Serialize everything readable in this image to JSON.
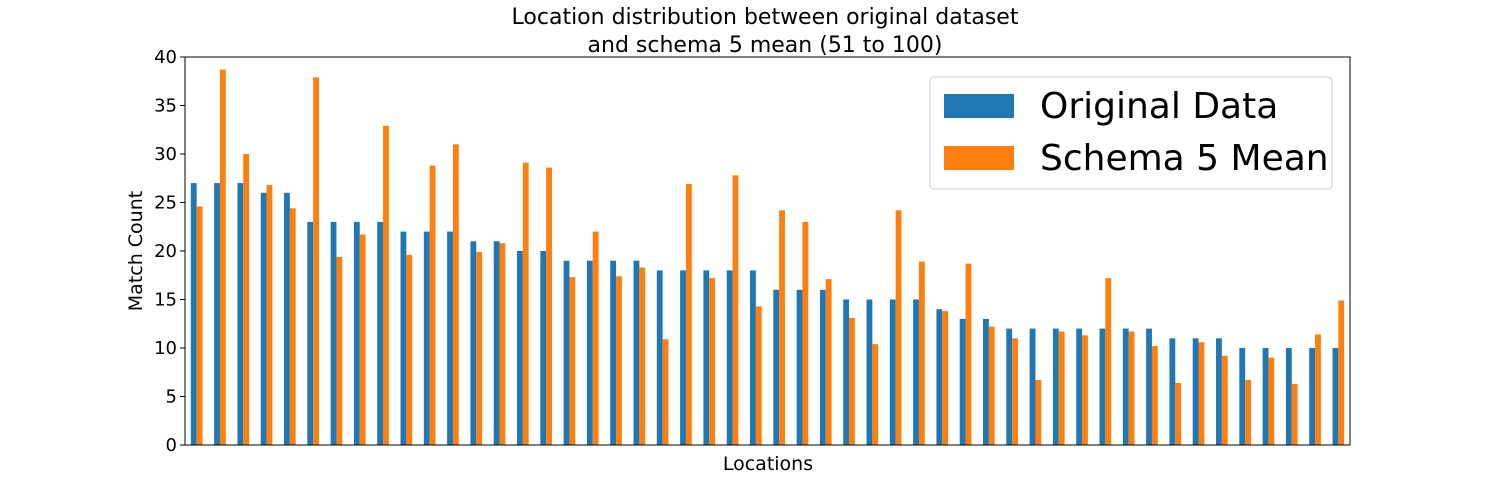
{
  "chart_data": {
    "type": "bar",
    "title_line1": "Location distribution between original dataset",
    "title_line2": "and schema 5 mean (51 to 100)",
    "xlabel": "Locations",
    "ylabel": "Match Count",
    "ylim": [
      0,
      40
    ],
    "yticks": [
      0,
      5,
      10,
      15,
      20,
      25,
      30,
      35,
      40
    ],
    "grid": false,
    "legend_position": "top-right",
    "legend": {
      "original_label": "Original Data",
      "schema_label": "Schema 5 Mean"
    },
    "series": [
      {
        "name": "Original Data",
        "color": "#1f77b4",
        "values": [
          27,
          27,
          27,
          26,
          26,
          23,
          23,
          23,
          23,
          22,
          22,
          22,
          21,
          21,
          20,
          20,
          19,
          19,
          19,
          19,
          18,
          18,
          18,
          18,
          18,
          16,
          16,
          16,
          15,
          15,
          15,
          15,
          14,
          13,
          13,
          12,
          12,
          12,
          12,
          12,
          12,
          12,
          11,
          11,
          11,
          10,
          10,
          10,
          10,
          10
        ]
      },
      {
        "name": "Schema 5 Mean",
        "color": "#ff7f0e",
        "values": [
          24.6,
          38.7,
          30.0,
          26.8,
          24.4,
          37.9,
          19.4,
          21.7,
          32.9,
          19.6,
          28.8,
          31.0,
          19.9,
          20.8,
          29.1,
          28.6,
          17.3,
          22.0,
          17.4,
          18.3,
          10.9,
          26.9,
          17.2,
          27.8,
          14.3,
          24.2,
          23.0,
          17.1,
          13.1,
          10.4,
          24.2,
          18.9,
          13.8,
          18.7,
          12.2,
          11.0,
          6.7,
          11.7,
          11.3,
          17.2,
          11.7,
          10.2,
          6.4,
          10.6,
          9.2,
          6.7,
          9.0,
          6.3,
          11.4,
          14.9
        ]
      }
    ]
  }
}
